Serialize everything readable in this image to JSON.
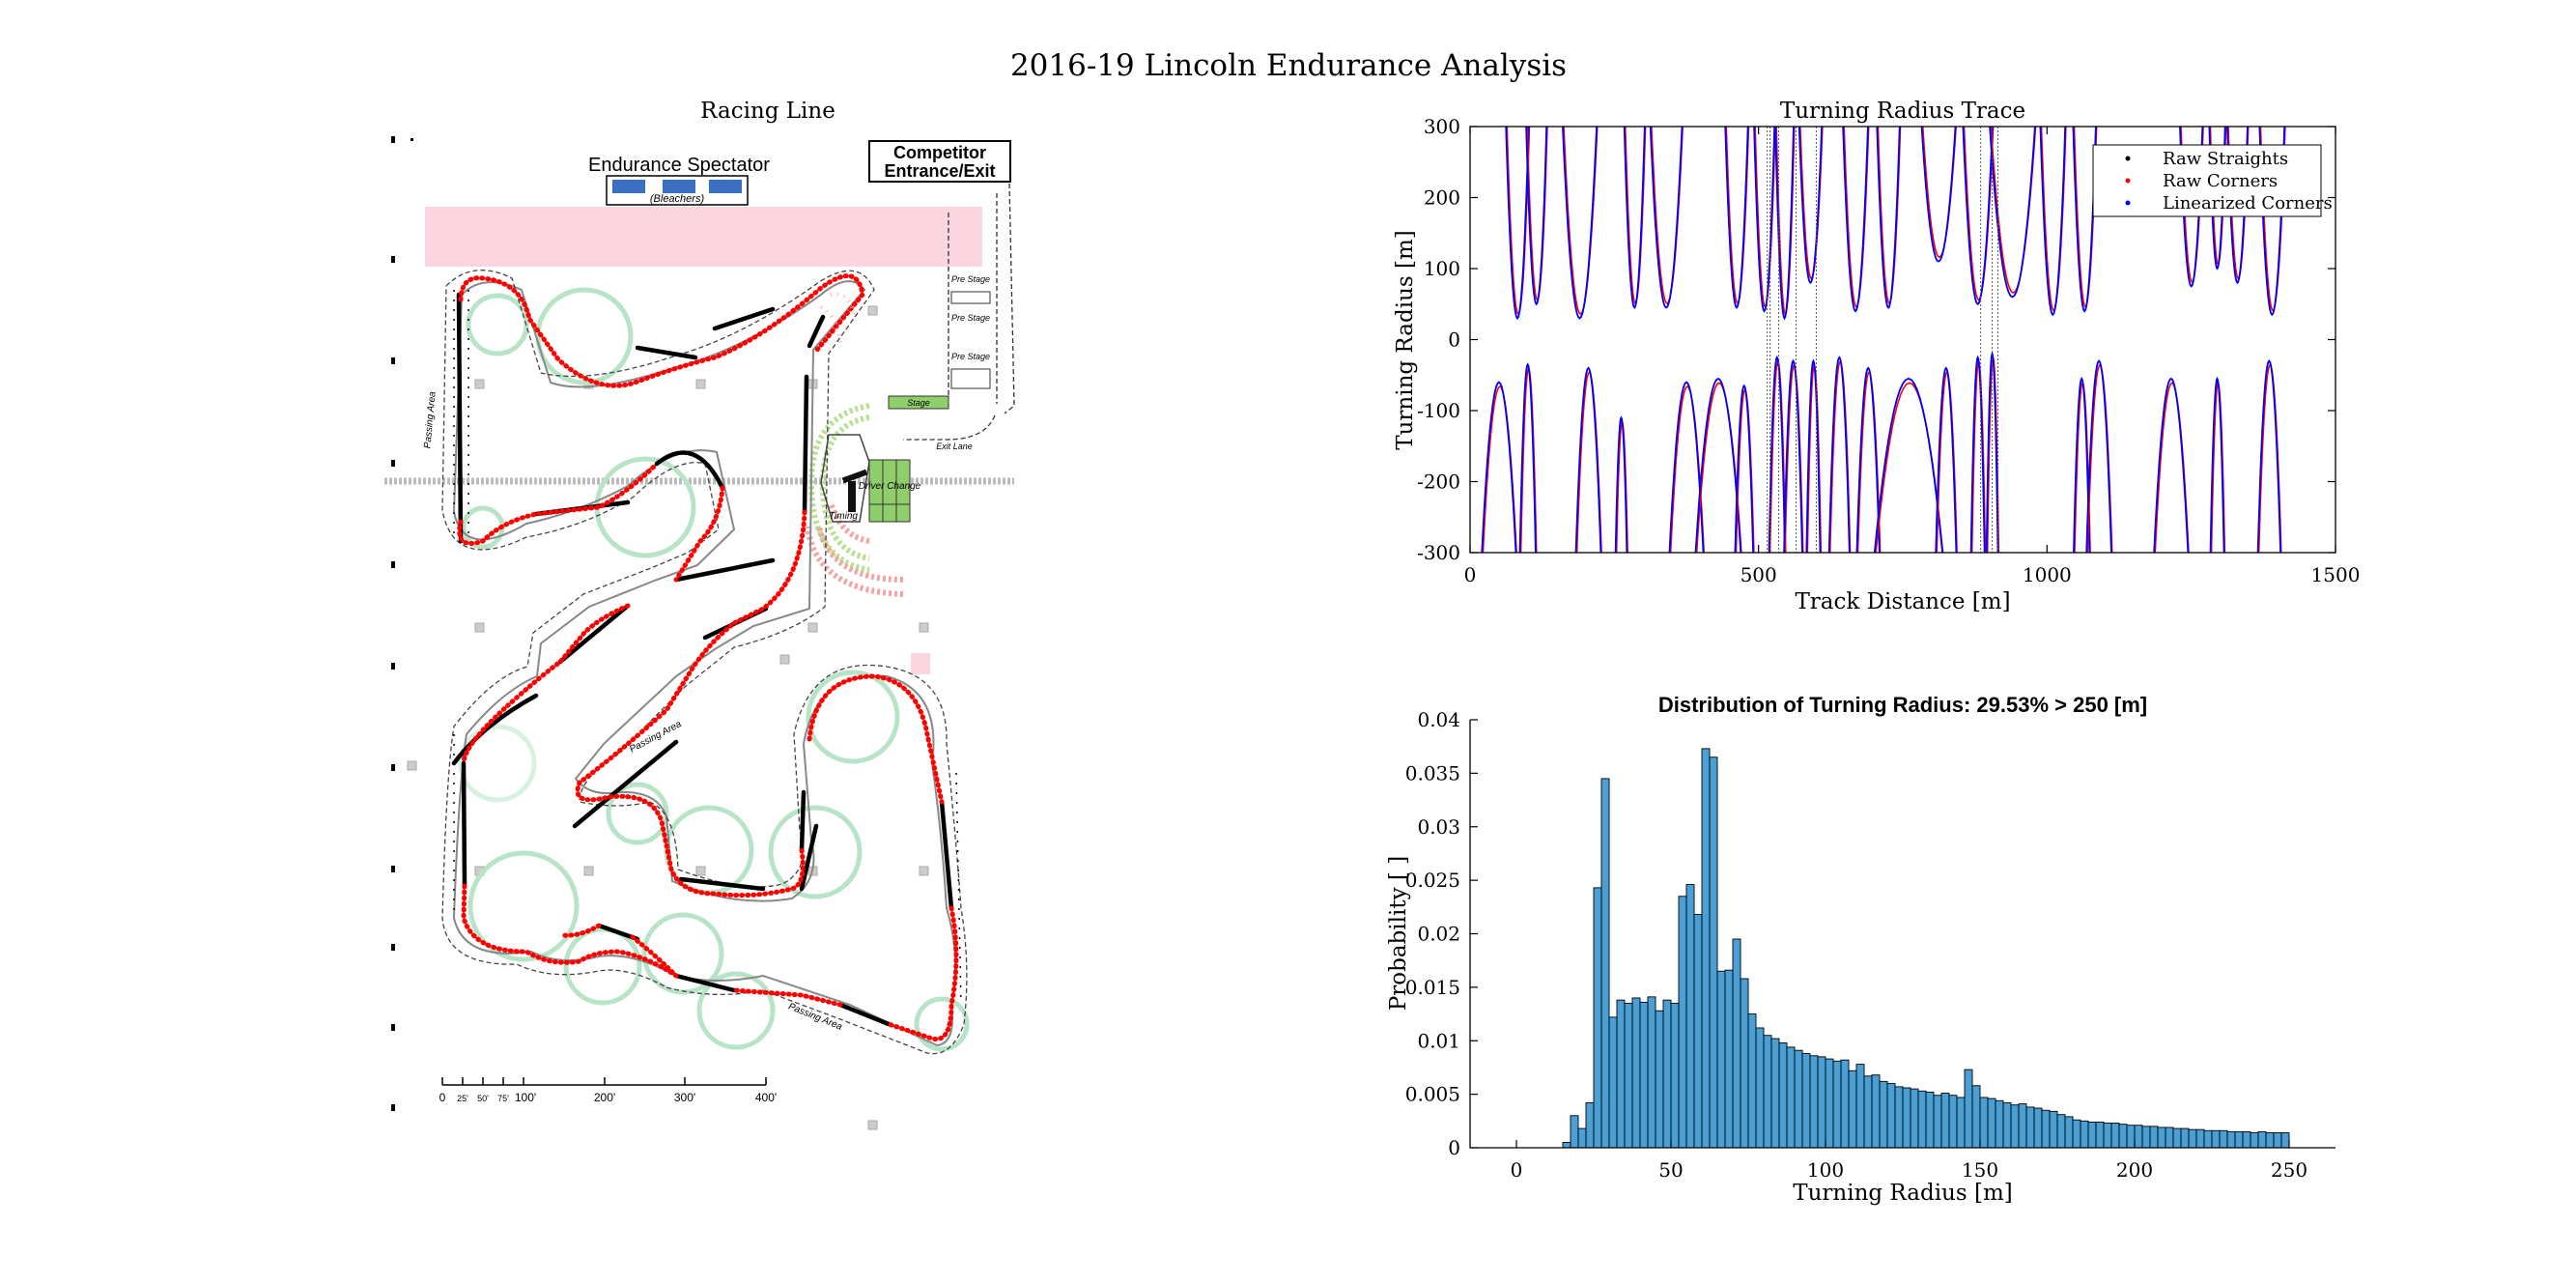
{
  "figure": {
    "suptitle": "2016-19 Lincoln Endurance Analysis"
  },
  "map": {
    "title": "Racing Line",
    "labels": {
      "spectator": "Endurance Spectator",
      "bleachers": "(Bleachers)",
      "competitor_1": "Competitor",
      "competitor_2": "Entrance/Exit",
      "passing_area": "Passing Area",
      "timing": "Timing",
      "driver_change": "Driver Change",
      "stage": "Stage",
      "exit_lane": "Exit Lane",
      "pre_stage": "Pre Stage"
    },
    "scale_ticks": [
      "0",
      "25'",
      "50'",
      "75'",
      "100'",
      "200'",
      "300'",
      "400'"
    ],
    "colors": {
      "racing_line": "#ff0000",
      "straights": "#000000",
      "track_outline": "#777777",
      "cones": "#b7e4c7",
      "spectator_zone": "#fbd5e0",
      "bleachers": "#3b6fc4",
      "driver_change": "#8fce6a"
    }
  },
  "chart_data": [
    {
      "type": "line",
      "title": "Turning Radius Trace",
      "xlabel": "Track Distance [m]",
      "ylabel": "Turning Radius [m]",
      "xlim": [
        0,
        1500
      ],
      "ylim": [
        -300,
        300
      ],
      "xticks": [
        0,
        500,
        1000,
        1500
      ],
      "yticks": [
        -300,
        -200,
        -100,
        0,
        100,
        200,
        300
      ],
      "legend_position": "top-right",
      "legend": [
        {
          "name": "Raw Straights",
          "color": "#000000"
        },
        {
          "name": "Raw Corners",
          "color": "#ff0000"
        },
        {
          "name": "Linearized Corners",
          "color": "#0000ff"
        }
      ],
      "positive_dips": [
        {
          "x": 82,
          "min": 30,
          "w": 20
        },
        {
          "x": 115,
          "min": 50,
          "w": 18
        },
        {
          "x": 190,
          "min": 30,
          "w": 30
        },
        {
          "x": 285,
          "min": 45,
          "w": 18
        },
        {
          "x": 340,
          "min": 45,
          "w": 28
        },
        {
          "x": 462,
          "min": 45,
          "w": 20
        },
        {
          "x": 510,
          "min": 40,
          "w": 18
        },
        {
          "x": 545,
          "min": 30,
          "w": 16
        },
        {
          "x": 590,
          "min": 80,
          "w": 20
        },
        {
          "x": 668,
          "min": 40,
          "w": 22
        },
        {
          "x": 725,
          "min": 45,
          "w": 20
        },
        {
          "x": 812,
          "min": 110,
          "w": 30
        },
        {
          "x": 880,
          "min": 50,
          "w": 26
        },
        {
          "x": 940,
          "min": 60,
          "w": 40
        },
        {
          "x": 1010,
          "min": 35,
          "w": 22
        },
        {
          "x": 1065,
          "min": 40,
          "w": 20
        },
        {
          "x": 1250,
          "min": 75,
          "w": 20
        },
        {
          "x": 1295,
          "min": 100,
          "w": 14
        },
        {
          "x": 1330,
          "min": 80,
          "w": 18
        },
        {
          "x": 1390,
          "min": 35,
          "w": 22
        }
      ],
      "negative_peaks": [
        {
          "x": 50,
          "max": -60,
          "w": 30
        },
        {
          "x": 100,
          "max": -35,
          "w": 14
        },
        {
          "x": 205,
          "max": -40,
          "w": 22
        },
        {
          "x": 262,
          "max": -110,
          "w": 10
        },
        {
          "x": 375,
          "max": -60,
          "w": 30
        },
        {
          "x": 430,
          "max": -55,
          "w": 40
        },
        {
          "x": 475,
          "max": -65,
          "w": 16
        },
        {
          "x": 532,
          "max": -25,
          "w": 14
        },
        {
          "x": 560,
          "max": -30,
          "w": 16
        },
        {
          "x": 595,
          "max": -30,
          "w": 12
        },
        {
          "x": 640,
          "max": -25,
          "w": 18
        },
        {
          "x": 690,
          "max": -40,
          "w": 20
        },
        {
          "x": 760,
          "max": -55,
          "w": 60
        },
        {
          "x": 825,
          "max": -40,
          "w": 18
        },
        {
          "x": 880,
          "max": -25,
          "w": 12
        },
        {
          "x": 905,
          "max": -20,
          "w": 10
        },
        {
          "x": 1060,
          "max": -55,
          "w": 14
        },
        {
          "x": 1090,
          "max": -30,
          "w": 22
        },
        {
          "x": 1215,
          "max": -55,
          "w": 30
        },
        {
          "x": 1295,
          "max": -55,
          "w": 12
        },
        {
          "x": 1385,
          "max": -30,
          "w": 20
        }
      ]
    },
    {
      "type": "bar",
      "title": "Distribution of Turning Radius: 29.53% > 250 [m]",
      "xlabel": "Turning Radius [m]",
      "ylabel": "Probability [ ]",
      "xlim": [
        -15,
        265
      ],
      "ylim": [
        0,
        0.04
      ],
      "xticks": [
        0,
        50,
        100,
        150,
        200,
        250
      ],
      "yticks": [
        0,
        0.005,
        0.01,
        0.015,
        0.02,
        0.025,
        0.03,
        0.035,
        0.04
      ],
      "ytick_labels": [
        "0",
        "0.005",
        "0.01",
        "0.015",
        "0.02",
        "0.025",
        "0.03",
        "0.035",
        "0.04"
      ],
      "bar_color": "#4a9fd5",
      "bin_start": 0,
      "bin_width": 2.5,
      "values": [
        0,
        0,
        0,
        0,
        0,
        0,
        0.0005,
        0.003,
        0.0018,
        0.0042,
        0.0243,
        0.0345,
        0.0122,
        0.0138,
        0.0135,
        0.014,
        0.0136,
        0.0141,
        0.0128,
        0.0138,
        0.0135,
        0.0235,
        0.0246,
        0.0218,
        0.0373,
        0.0365,
        0.0165,
        0.0166,
        0.0195,
        0.0158,
        0.0125,
        0.0112,
        0.0105,
        0.0102,
        0.0098,
        0.0094,
        0.0091,
        0.0088,
        0.0086,
        0.0085,
        0.0083,
        0.0081,
        0.0082,
        0.0072,
        0.0078,
        0.0067,
        0.0068,
        0.0062,
        0.006,
        0.0057,
        0.0056,
        0.0055,
        0.0053,
        0.0052,
        0.0049,
        0.0051,
        0.0049,
        0.0047,
        0.0073,
        0.0058,
        0.0047,
        0.0046,
        0.0044,
        0.0042,
        0.004,
        0.0041,
        0.0038,
        0.0037,
        0.0035,
        0.0034,
        0.0031,
        0.0029,
        0.0026,
        0.0025,
        0.0024,
        0.0024,
        0.0023,
        0.0023,
        0.0022,
        0.0021,
        0.0021,
        0.002,
        0.002,
        0.0019,
        0.0019,
        0.0018,
        0.0018,
        0.0017,
        0.0017,
        0.0016,
        0.0016,
        0.0016,
        0.0015,
        0.0015,
        0.0015,
        0.0014,
        0.0015,
        0.0014,
        0.0014,
        0.0014
      ]
    }
  ]
}
